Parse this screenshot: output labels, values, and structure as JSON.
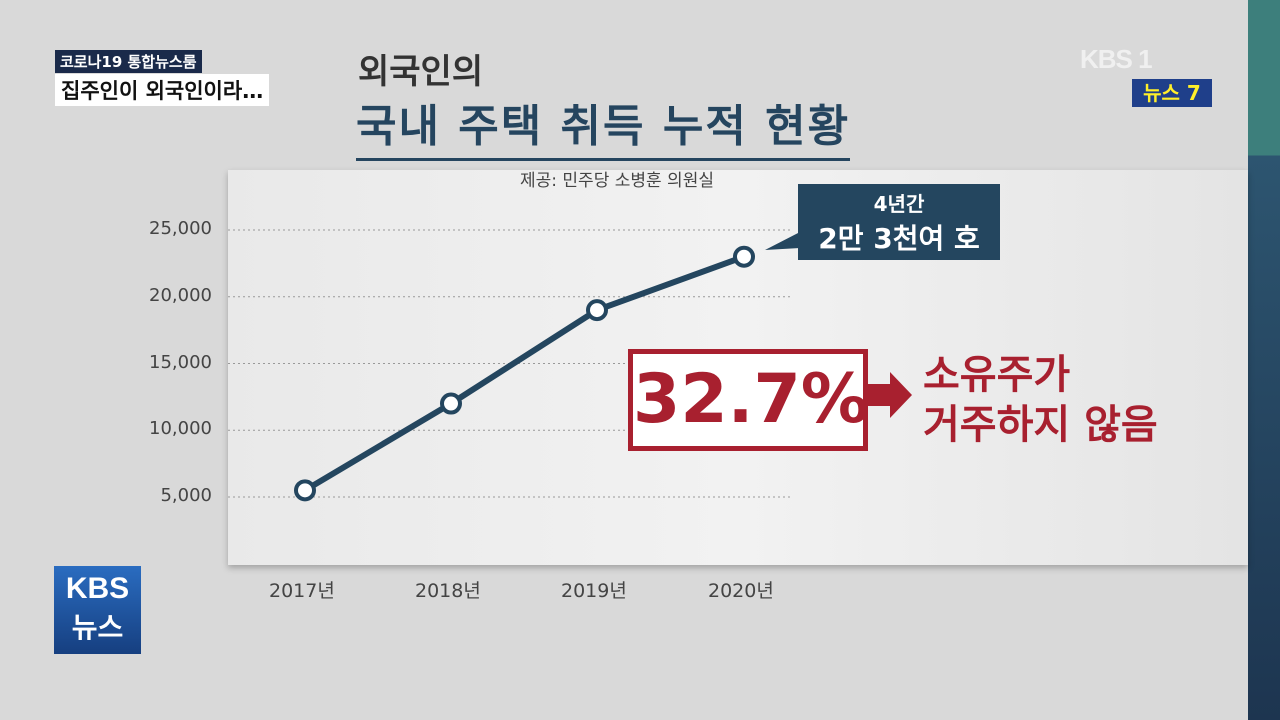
{
  "broadcast": {
    "program": "코로나19 통합뉴스룸",
    "headline": "집주인이 외국인이라…",
    "channel_logo": "KBS 1",
    "news_badge": "뉴스 7",
    "corner_logo": [
      "KBS",
      "뉴스"
    ]
  },
  "colors": {
    "line": "#24465f",
    "accent": "#a8202f",
    "badge_text": "#ffef2a"
  },
  "chart_data": {
    "type": "line",
    "title": "외국인의 국내 주택 취득 누적 현황",
    "title_line1": "외국인의",
    "title_line2": "국내 주택 취득 누적 현황",
    "source": "제공: 민주당 소병훈 의원실",
    "categories": [
      "2017년",
      "2018년",
      "2019년",
      "2020년"
    ],
    "values": [
      5500,
      12000,
      19000,
      23000
    ],
    "yticks": [
      "5,000",
      "10,000",
      "15,000",
      "20,000",
      "25,000"
    ],
    "ytick_values": [
      5000,
      10000,
      15000,
      20000,
      25000
    ],
    "ylim": [
      3000,
      25000
    ],
    "grid": true,
    "annotation": {
      "line1": "4년간",
      "line2": "2만 3천여 호"
    },
    "highlight": {
      "value": "32.7%",
      "arrow": "arrow-right-icon",
      "line1": "소유주가",
      "line2": "거주하지 않음"
    }
  }
}
